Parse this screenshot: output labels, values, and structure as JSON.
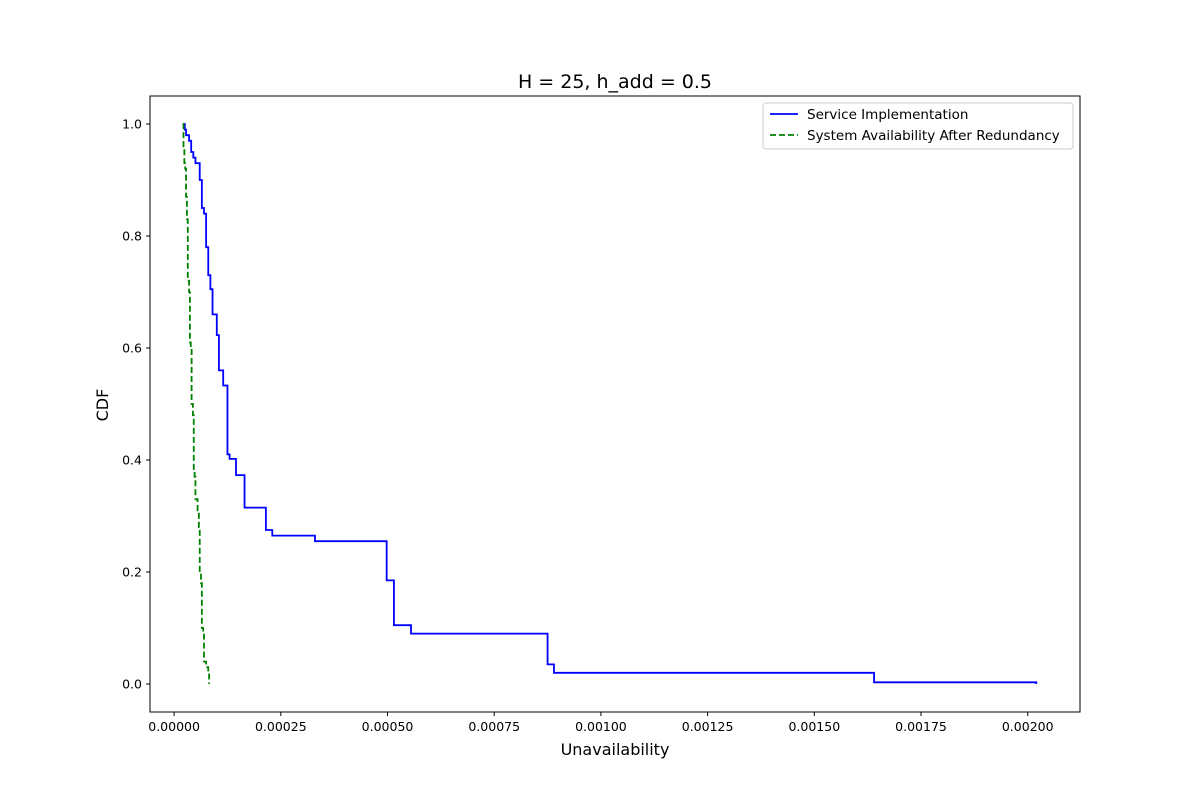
{
  "chart_data": {
    "type": "line",
    "title": "H = 25, h_add = 0.5",
    "xlabel": "Unavailability",
    "ylabel": "CDF",
    "xlim": [
      -5.65e-05,
      0.0021225
    ],
    "ylim": [
      -0.05,
      1.05
    ],
    "x_ticks": [
      0.0,
      0.00025,
      0.0005,
      0.00075,
      0.001,
      0.00125,
      0.0015,
      0.00175,
      0.002
    ],
    "x_tick_labels": [
      "0.00000",
      "0.00025",
      "0.00050",
      "0.00075",
      "0.00100",
      "0.00125",
      "0.00150",
      "0.00175",
      "0.00200"
    ],
    "y_ticks": [
      0.0,
      0.2,
      0.4,
      0.6,
      0.8,
      1.0
    ],
    "y_tick_labels": [
      "0.0",
      "0.2",
      "0.4",
      "0.6",
      "0.8",
      "1.0"
    ],
    "grid": false,
    "legend_position": "top-right",
    "series": [
      {
        "name": "Service Implementation",
        "color": "#0000ff",
        "style": "solid",
        "step": true,
        "points": [
          [
            2.2e-05,
            1.0
          ],
          [
            2.5e-05,
            0.99
          ],
          [
            2.8e-05,
            0.98
          ],
          [
            3.5e-05,
            0.97
          ],
          [
            4e-05,
            0.95
          ],
          [
            4.5e-05,
            0.94
          ],
          [
            5e-05,
            0.93
          ],
          [
            6e-05,
            0.9
          ],
          [
            6.5e-05,
            0.85
          ],
          [
            7e-05,
            0.84
          ],
          [
            7.5e-05,
            0.78
          ],
          [
            8e-05,
            0.73
          ],
          [
            8.5e-05,
            0.705
          ],
          [
            9e-05,
            0.66
          ],
          [
            0.0001,
            0.623
          ],
          [
            0.000105,
            0.56
          ],
          [
            0.000115,
            0.533
          ],
          [
            0.000125,
            0.41
          ],
          [
            0.00013,
            0.402
          ],
          [
            0.000145,
            0.373
          ],
          [
            0.000165,
            0.315
          ],
          [
            0.000215,
            0.275
          ],
          [
            0.00023,
            0.265
          ],
          [
            0.00033,
            0.255
          ],
          [
            0.000498,
            0.185
          ],
          [
            0.000515,
            0.105
          ],
          [
            0.000555,
            0.09
          ],
          [
            0.000875,
            0.035
          ],
          [
            0.00089,
            0.02
          ],
          [
            0.00164,
            0.003
          ],
          [
            0.00202,
            0.0
          ]
        ]
      },
      {
        "name": "System Availability After Redundancy",
        "color": "#008000",
        "style": "dashed",
        "step": true,
        "points": [
          [
            2e-05,
            1.0
          ],
          [
            2.2e-05,
            0.96
          ],
          [
            2.4e-05,
            0.93
          ],
          [
            2.6e-05,
            0.92
          ],
          [
            2.8e-05,
            0.87
          ],
          [
            3e-05,
            0.83
          ],
          [
            3.2e-05,
            0.72
          ],
          [
            3.5e-05,
            0.7
          ],
          [
            3.7e-05,
            0.61
          ],
          [
            3.9e-05,
            0.6
          ],
          [
            4.1e-05,
            0.5
          ],
          [
            4.4e-05,
            0.48
          ],
          [
            4.6e-05,
            0.38
          ],
          [
            4.8e-05,
            0.37
          ],
          [
            5e-05,
            0.33
          ],
          [
            5.5e-05,
            0.31
          ],
          [
            5.8e-05,
            0.28
          ],
          [
            6e-05,
            0.2
          ],
          [
            6.3e-05,
            0.18
          ],
          [
            6.5e-05,
            0.1
          ],
          [
            6.8e-05,
            0.09
          ],
          [
            7e-05,
            0.04
          ],
          [
            7.5e-05,
            0.03
          ],
          [
            8e-05,
            0.02
          ],
          [
            8.2e-05,
            0.0
          ]
        ]
      }
    ]
  }
}
